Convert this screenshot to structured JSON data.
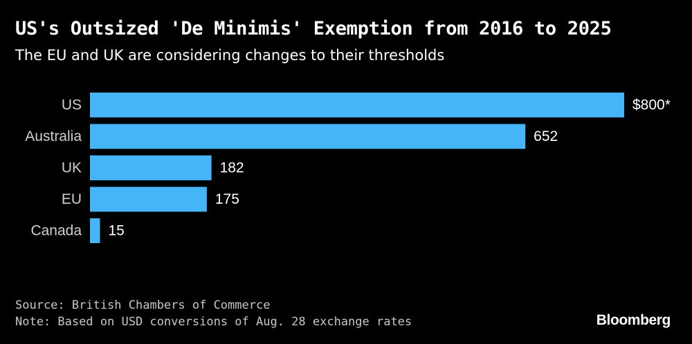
{
  "chart_data": {
    "type": "bar",
    "orientation": "horizontal",
    "title": "US's Outsized 'De Minimis' Exemption from 2016 to 2025",
    "subtitle": "The EU and UK are considering changes to their thresholds",
    "categories": [
      "US",
      "Australia",
      "UK",
      "EU",
      "Canada"
    ],
    "values": [
      800,
      652,
      182,
      175,
      15
    ],
    "value_labels": [
      "$800*",
      "652",
      "182",
      "175",
      "15"
    ],
    "xlabel": "",
    "ylabel": "",
    "xlim": [
      0,
      800
    ],
    "bar_color": "#45b5f8",
    "grid": false
  },
  "footer": {
    "source": "Source: British Chambers of Commerce",
    "note": "Note: Based on USD conversions of Aug. 28 exchange rates",
    "brand": "Bloomberg"
  },
  "colors": {
    "background": "#000000",
    "text": "#ffffff",
    "muted_text": "#c8c8c8",
    "bar": "#45b5f8"
  }
}
